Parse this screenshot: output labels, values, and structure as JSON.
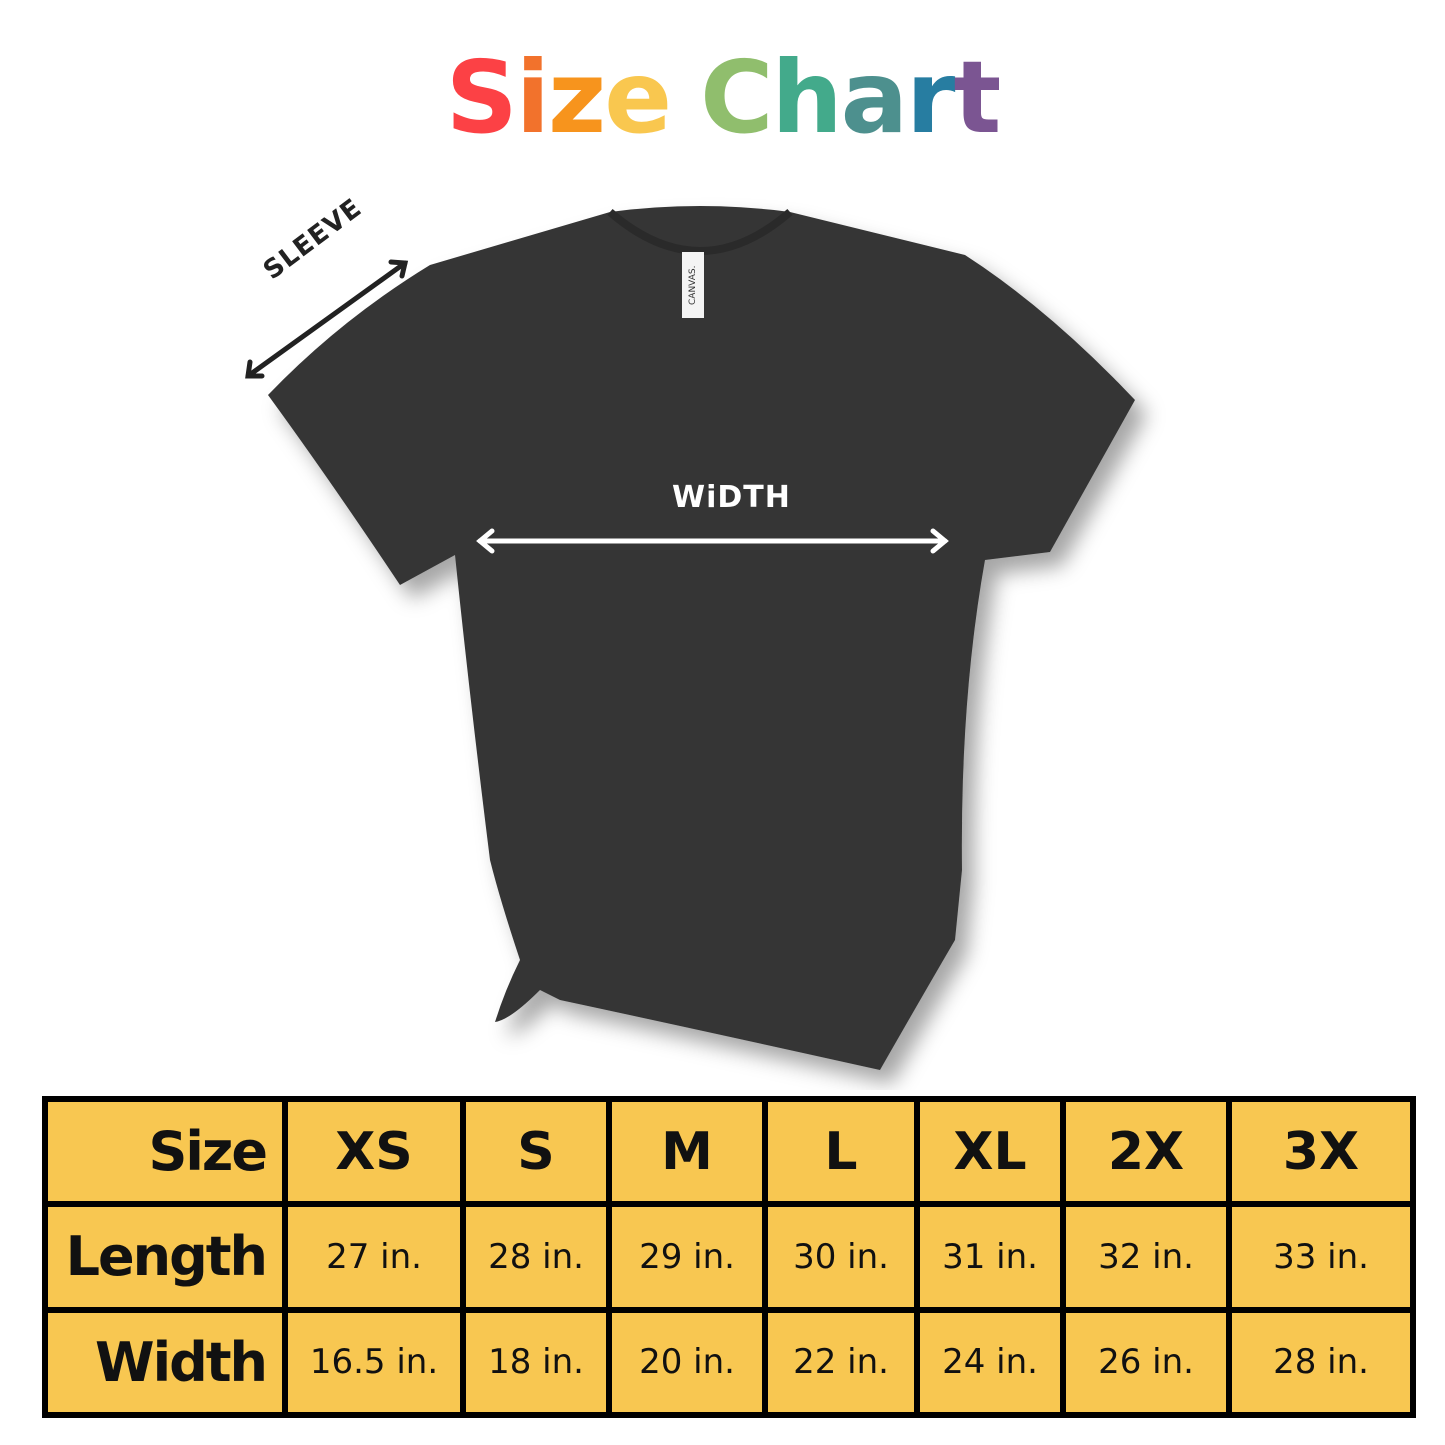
{
  "title": {
    "text": "Size Chart",
    "letters": [
      {
        "ch": "S",
        "color": "#fc4145"
      },
      {
        "ch": "i",
        "color": "#f2722c"
      },
      {
        "ch": "z",
        "color": "#f7941d"
      },
      {
        "ch": "e",
        "color": "#f9c74f"
      },
      {
        "ch": " ",
        "color": "#fff"
      },
      {
        "ch": "C",
        "color": "#90be6d"
      },
      {
        "ch": "h",
        "color": "#43aa8b"
      },
      {
        "ch": "a",
        "color": "#4d908e"
      },
      {
        "ch": "r",
        "color": "#277da1"
      },
      {
        "ch": "t",
        "color": "#7b5592"
      }
    ]
  },
  "diagram": {
    "sleeve_label": "SLEEVE",
    "width_label": "WiDTH",
    "tag_text": "CANVAS.",
    "shirt_color": "#363636"
  },
  "table": {
    "header": [
      "Size",
      "XS",
      "S",
      "M",
      "L",
      "XL",
      "2X",
      "3X"
    ],
    "rows": [
      {
        "label": "Length",
        "values": [
          "27 in.",
          "28 in.",
          "29 in.",
          "30 in.",
          "31 in.",
          "32 in.",
          "33 in."
        ]
      },
      {
        "label": "Width",
        "values": [
          "16.5 in.",
          "18 in.",
          "20 in.",
          "22 in.",
          "24 in.",
          "26 in.",
          "28 in."
        ]
      }
    ],
    "cell_color": "#f8c751"
  }
}
